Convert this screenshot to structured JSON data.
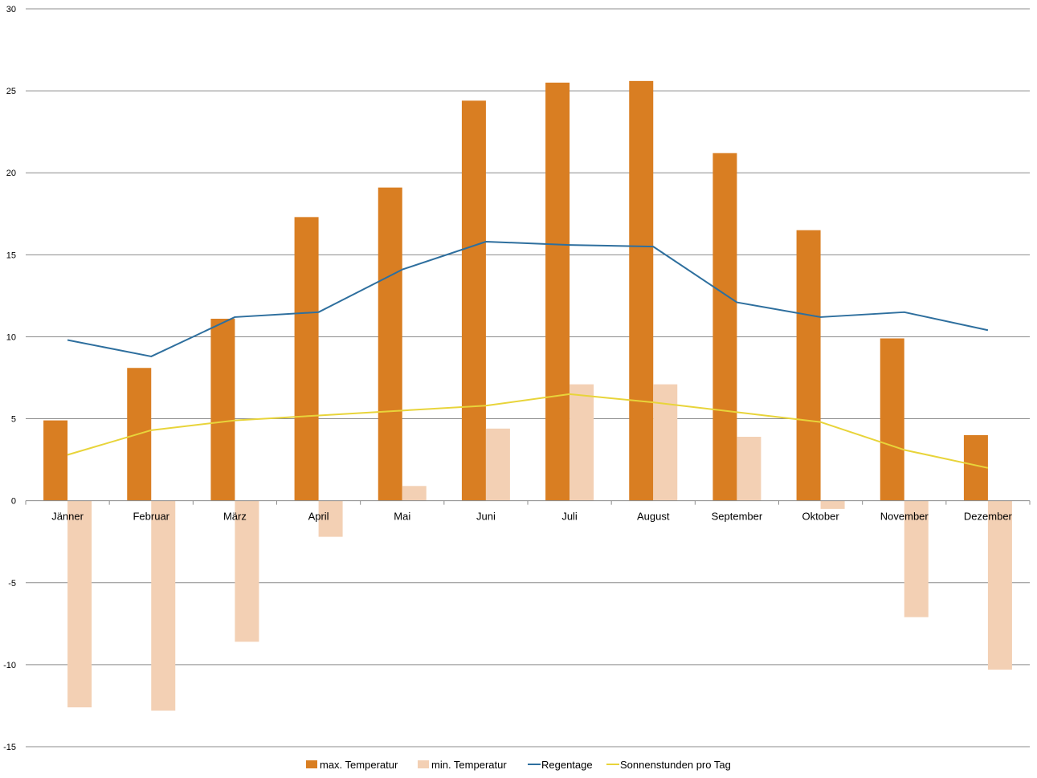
{
  "chart_data": {
    "type": "bar",
    "categories": [
      "Jänner",
      "Februar",
      "März",
      "April",
      "Mai",
      "Juni",
      "Juli",
      "August",
      "September",
      "Oktober",
      "November",
      "Dezember"
    ],
    "series": [
      {
        "name": "max. Temperatur",
        "kind": "bar",
        "color": "#D97E22",
        "values": [
          4.9,
          8.1,
          11.1,
          17.3,
          19.1,
          24.4,
          25.5,
          25.6,
          21.2,
          16.5,
          9.9,
          4.0
        ]
      },
      {
        "name": "min. Temperatur",
        "kind": "bar",
        "color": "#F3D0B4",
        "values": [
          -12.6,
          -12.8,
          -8.6,
          -2.2,
          0.9,
          4.4,
          7.1,
          7.1,
          3.9,
          -0.5,
          -7.1,
          -10.3
        ]
      },
      {
        "name": "Regentage",
        "kind": "line",
        "color": "#2E6F9E",
        "values": [
          9.8,
          8.8,
          11.2,
          11.5,
          14.1,
          15.8,
          15.6,
          15.5,
          12.1,
          11.2,
          11.5,
          10.4
        ]
      },
      {
        "name": "Sonnenstunden pro Tag",
        "kind": "line",
        "color": "#E8D43A",
        "values": [
          2.8,
          4.3,
          4.9,
          5.2,
          5.5,
          5.8,
          6.5,
          6.0,
          5.4,
          4.8,
          3.1,
          2.0
        ]
      }
    ],
    "ylim": [
      -15,
      30
    ],
    "yticks": [
      "30",
      "25",
      "20",
      "15",
      "10",
      "5",
      "0",
      "-5",
      "-10",
      "-15"
    ],
    "grid": true,
    "legend": "bottom",
    "title": "",
    "xlabel": "",
    "ylabel": ""
  }
}
